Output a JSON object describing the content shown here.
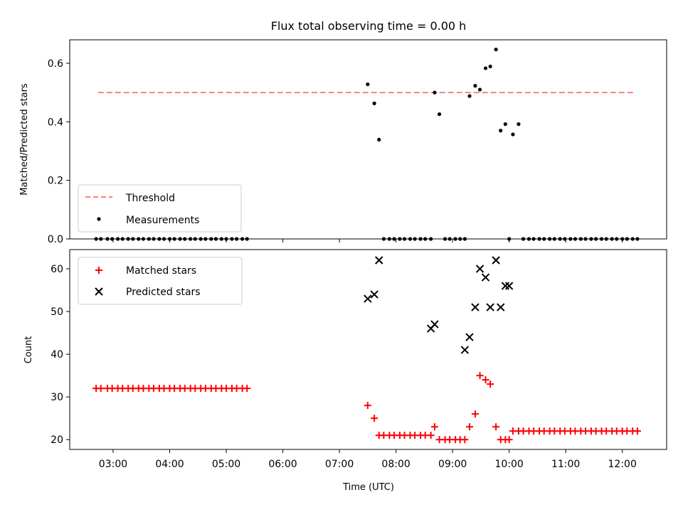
{
  "chart_data": {
    "title": "Flux total observing time = 0.00 h",
    "xlabel": "Time (UTC)",
    "x_unit": "hours UTC",
    "xlim": [
      "02:14",
      "12:47"
    ],
    "x_ticks": [
      "03:00",
      "04:00",
      "05:00",
      "06:00",
      "07:00",
      "08:00",
      "09:00",
      "10:00",
      "11:00",
      "12:00"
    ],
    "panels": [
      {
        "type": "scatter",
        "ylabel": "Matched/Predicted stars",
        "ylim": [
          0,
          0.68
        ],
        "y_ticks": [
          "0.0",
          "0.2",
          "0.4",
          "0.6"
        ],
        "legend": "bottom-left",
        "series": [
          {
            "name": "Threshold",
            "kind": "line",
            "style": "dashed",
            "color": "#ff7f7f",
            "x": [
              "02:44",
              "12:14"
            ],
            "y": [
              0.5,
              0.5
            ]
          },
          {
            "name": "Measurements",
            "kind": "scatter",
            "marker": "dot",
            "color": "#000000",
            "x": [
              "02:42",
              "02:47",
              "02:54",
              "02:59",
              "03:05",
              "03:10",
              "03:16",
              "03:21",
              "03:27",
              "03:32",
              "03:38",
              "03:43",
              "03:49",
              "03:54",
              "04:00",
              "04:05",
              "04:11",
              "04:16",
              "04:22",
              "04:27",
              "04:33",
              "04:38",
              "04:44",
              "04:49",
              "04:55",
              "05:00",
              "05:06",
              "05:11",
              "05:17",
              "05:22",
              "07:30",
              "07:37",
              "07:42",
              "07:47",
              "07:53",
              "07:58",
              "08:04",
              "08:09",
              "08:15",
              "08:20",
              "08:26",
              "08:31",
              "08:37",
              "08:41",
              "08:46",
              "08:52",
              "08:57",
              "09:03",
              "09:08",
              "09:13",
              "09:18",
              "09:24",
              "09:29",
              "09:35",
              "09:40",
              "09:46",
              "09:51",
              "09:56",
              "10:00",
              "10:04",
              "10:10",
              "10:15",
              "10:21",
              "10:26",
              "10:32",
              "10:37",
              "10:43",
              "10:48",
              "10:54",
              "10:59",
              "11:05",
              "11:10",
              "11:16",
              "11:21",
              "11:27",
              "11:32",
              "11:38",
              "11:43",
              "11:49",
              "11:54",
              "12:00",
              "12:05",
              "12:11",
              "12:16"
            ],
            "y": [
              0,
              0,
              0,
              0,
              0,
              0,
              0,
              0,
              0,
              0,
              0,
              0,
              0,
              0,
              0,
              0,
              0,
              0,
              0,
              0,
              0,
              0,
              0,
              0,
              0,
              0,
              0,
              0,
              0,
              0,
              0.528,
              0.463,
              0.339,
              0,
              0,
              0,
              0,
              0,
              0,
              0,
              0,
              0,
              0,
              0.5,
              0.426,
              0,
              0,
              0,
              0,
              0,
              0.488,
              0.523,
              0.51,
              0.583,
              0.589,
              0.647,
              0.37,
              0.392,
              0,
              0.357,
              0.392,
              0,
              0,
              0,
              0,
              0,
              0,
              0,
              0,
              0,
              0,
              0,
              0,
              0,
              0,
              0,
              0,
              0,
              0,
              0,
              0,
              0,
              0,
              0
            ]
          }
        ]
      },
      {
        "type": "scatter",
        "ylabel": "Count",
        "ylim": [
          17.7,
          64.5
        ],
        "y_ticks": [
          "20",
          "30",
          "40",
          "50",
          "60"
        ],
        "legend": "top-left",
        "series": [
          {
            "name": "Matched stars",
            "kind": "scatter",
            "marker": "plus",
            "color": "#ff0000",
            "x": [
              "02:42",
              "02:47",
              "02:54",
              "02:59",
              "03:05",
              "03:10",
              "03:16",
              "03:21",
              "03:27",
              "03:32",
              "03:38",
              "03:43",
              "03:49",
              "03:54",
              "04:00",
              "04:05",
              "04:11",
              "04:16",
              "04:22",
              "04:27",
              "04:33",
              "04:38",
              "04:44",
              "04:49",
              "04:55",
              "05:00",
              "05:06",
              "05:11",
              "05:17",
              "05:22",
              "07:30",
              "07:37",
              "07:42",
              "07:47",
              "07:53",
              "07:58",
              "08:04",
              "08:09",
              "08:15",
              "08:20",
              "08:26",
              "08:31",
              "08:37",
              "08:41",
              "08:46",
              "08:52",
              "08:57",
              "09:03",
              "09:08",
              "09:13",
              "09:18",
              "09:24",
              "09:29",
              "09:35",
              "09:40",
              "09:46",
              "09:51",
              "09:56",
              "10:00",
              "10:04",
              "10:10",
              "10:15",
              "10:21",
              "10:26",
              "10:32",
              "10:37",
              "10:43",
              "10:48",
              "10:54",
              "10:59",
              "11:05",
              "11:10",
              "11:16",
              "11:21",
              "11:27",
              "11:32",
              "11:38",
              "11:43",
              "11:49",
              "11:54",
              "12:00",
              "12:05",
              "12:11",
              "12:16"
            ],
            "y": [
              32,
              32,
              32,
              32,
              32,
              32,
              32,
              32,
              32,
              32,
              32,
              32,
              32,
              32,
              32,
              32,
              32,
              32,
              32,
              32,
              32,
              32,
              32,
              32,
              32,
              32,
              32,
              32,
              32,
              32,
              28,
              25,
              21,
              21,
              21,
              21,
              21,
              21,
              21,
              21,
              21,
              21,
              21,
              23,
              20,
              20,
              20,
              20,
              20,
              20,
              23,
              26,
              35,
              34,
              33,
              23,
              20,
              20,
              20,
              22,
              22,
              22,
              22,
              22,
              22,
              22,
              22,
              22,
              22,
              22,
              22,
              22,
              22,
              22,
              22,
              22,
              22,
              22,
              22,
              22,
              22,
              22,
              22,
              22
            ]
          },
          {
            "name": "Predicted stars",
            "kind": "scatter",
            "marker": "x",
            "color": "#000000",
            "x": [
              "07:30",
              "07:37",
              "07:42",
              "08:37",
              "08:41",
              "09:13",
              "09:18",
              "09:24",
              "09:29",
              "09:35",
              "09:40",
              "09:46",
              "09:51",
              "09:56",
              "10:00"
            ],
            "y": [
              53,
              54,
              62,
              46,
              47,
              41,
              44,
              51,
              60,
              58,
              51,
              62,
              51,
              56,
              56
            ]
          }
        ]
      }
    ]
  }
}
